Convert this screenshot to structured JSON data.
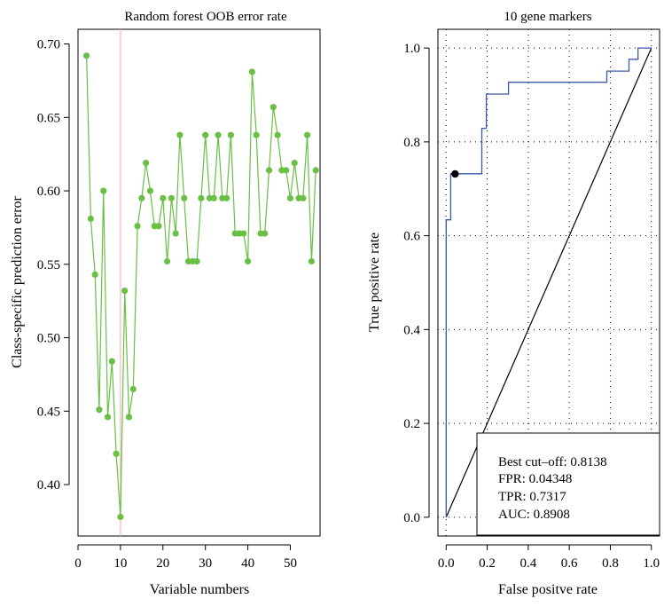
{
  "chart_data": [
    {
      "type": "line",
      "title": "Random forest OOB error rate",
      "xlabel": "Variable numbers",
      "ylabel": "Class-specific prediction error",
      "xlim": [
        0,
        57
      ],
      "ylim": [
        0.365,
        0.71
      ],
      "xticks": [
        0,
        10,
        20,
        30,
        40,
        50
      ],
      "yticks": [
        0.4,
        0.45,
        0.5,
        0.55,
        0.6,
        0.65,
        0.7
      ],
      "ytick_labels": [
        "0.40",
        "0.45",
        "0.50",
        "0.55",
        "0.60",
        "0.65",
        "0.70"
      ],
      "vline_x": 10,
      "vline_color": "#f4b6c2",
      "series_color": "#6abf45",
      "x": [
        2,
        3,
        4,
        5,
        6,
        7,
        8,
        9,
        10,
        11,
        12,
        13,
        14,
        15,
        16,
        17,
        18,
        19,
        20,
        21,
        22,
        23,
        24,
        25,
        26,
        27,
        28,
        29,
        30,
        31,
        32,
        33,
        34,
        35,
        36,
        37,
        38,
        39,
        40,
        41,
        42,
        43,
        44,
        45,
        46,
        47,
        48,
        49,
        50,
        51,
        52,
        53,
        54,
        55,
        56
      ],
      "values": [
        0.692,
        0.581,
        0.543,
        0.451,
        0.6,
        0.446,
        0.484,
        0.421,
        0.378,
        0.532,
        0.446,
        0.465,
        0.576,
        0.595,
        0.619,
        0.6,
        0.576,
        0.576,
        0.595,
        0.552,
        0.595,
        0.571,
        0.638,
        0.595,
        0.552,
        0.552,
        0.552,
        0.595,
        0.638,
        0.595,
        0.595,
        0.638,
        0.595,
        0.595,
        0.638,
        0.571,
        0.571,
        0.571,
        0.552,
        0.681,
        0.638,
        0.571,
        0.571,
        0.614,
        0.657,
        0.638,
        0.614,
        0.614,
        0.595,
        0.619,
        0.595,
        0.595,
        0.638,
        0.552,
        0.614
      ]
    },
    {
      "type": "line",
      "title": "10 gene markers",
      "xlabel": "False positve rate",
      "ylabel": "True positive rate",
      "xlim": [
        -0.04,
        1.04
      ],
      "ylim": [
        -0.04,
        1.04
      ],
      "xticks": [
        0.0,
        0.2,
        0.4,
        0.6,
        0.8,
        1.0
      ],
      "xtick_labels": [
        "0.0",
        "0.2",
        "0.4",
        "0.6",
        "0.8",
        "1.0"
      ],
      "yticks": [
        0.0,
        0.2,
        0.4,
        0.6,
        0.8,
        1.0
      ],
      "ytick_labels": [
        "0.0",
        "0.2",
        "0.4",
        "0.6",
        "0.8",
        "1.0"
      ],
      "grid": true,
      "roc_color": "#3b5aa8",
      "roc_x": [
        0,
        0,
        0.022,
        0.022,
        0.043,
        0.174,
        0.174,
        0.196,
        0.196,
        0.239,
        0.239,
        0.304,
        0.304,
        0.783,
        0.783,
        0.891,
        0.891,
        0.935,
        0.935,
        0.978,
        0.978,
        1.0
      ],
      "roc_y": [
        0,
        0.634,
        0.634,
        0.732,
        0.732,
        0.732,
        0.829,
        0.829,
        0.902,
        0.902,
        0.902,
        0.902,
        0.927,
        0.927,
        0.951,
        0.951,
        0.976,
        0.976,
        1.0,
        1.0,
        1.0,
        1.0
      ],
      "diagonal": [
        [
          0,
          0
        ],
        [
          1,
          1
        ]
      ],
      "best_point": [
        0.0435,
        0.7317
      ],
      "legend_lines": [
        "Best cut–off: 0.8138",
        "FPR: 0.04348",
        "TPR: 0.7317",
        "AUC: 0.8908"
      ]
    }
  ]
}
